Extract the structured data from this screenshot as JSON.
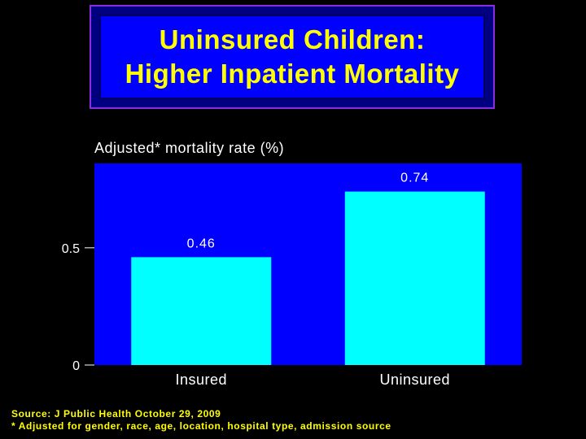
{
  "title": {
    "line1": "Uninsured Children:",
    "line2": "Higher Inpatient Mortality"
  },
  "colors": {
    "background": "#000000",
    "title_text": "#ffff00",
    "title_box": "#0000ff",
    "plot_area": "#0000ff",
    "bars": "#00ffff",
    "text": "#ffffff"
  },
  "chart_data": {
    "type": "bar",
    "ylabel": "Adjusted* mortality rate (%)",
    "categories": [
      "Insured",
      "Uninsured"
    ],
    "values": [
      0.46,
      0.74
    ],
    "data_labels": [
      "0.46",
      "0.74"
    ],
    "yticks": [
      0,
      0.5
    ],
    "ytick_labels": [
      "0",
      "0.5"
    ],
    "ylim": [
      0,
      0.86
    ],
    "grid": false,
    "legend": "none"
  },
  "footer": {
    "source": "Source: J Public Health October 29, 2009",
    "note": "* Adjusted for gender, race, age, location, hospital type, admission source"
  }
}
